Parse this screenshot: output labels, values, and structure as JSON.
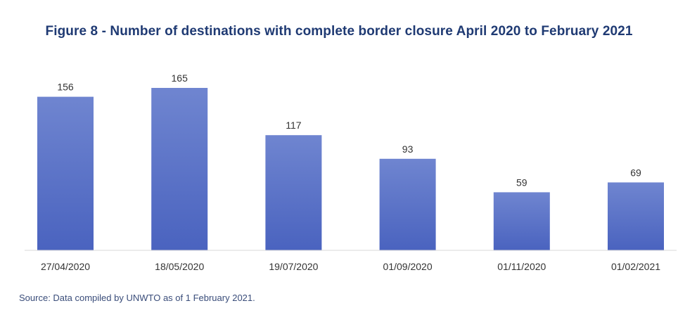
{
  "colors": {
    "title": "#1f3a73",
    "bar_top": "#6f85d0",
    "bar_bottom": "#4a63bf",
    "axis": "#d9d9d9",
    "text": "#333333",
    "source": "#3a4d7a"
  },
  "chart_data": {
    "type": "bar",
    "title": "Figure 8 - Number of destinations with complete border closure April 2020 to February 2021",
    "xlabel": "",
    "ylabel": "",
    "categories": [
      "27/04/2020",
      "18/05/2020",
      "19/07/2020",
      "01/09/2020",
      "01/11/2020",
      "01/02/2021"
    ],
    "values": [
      156,
      165,
      117,
      93,
      59,
      69
    ],
    "ylim": [
      0,
      165
    ],
    "data_labels": true,
    "grid": false,
    "legend": "none"
  },
  "footer": {
    "source": "Source: Data compiled by UNWTO as of 1 February 2021."
  }
}
